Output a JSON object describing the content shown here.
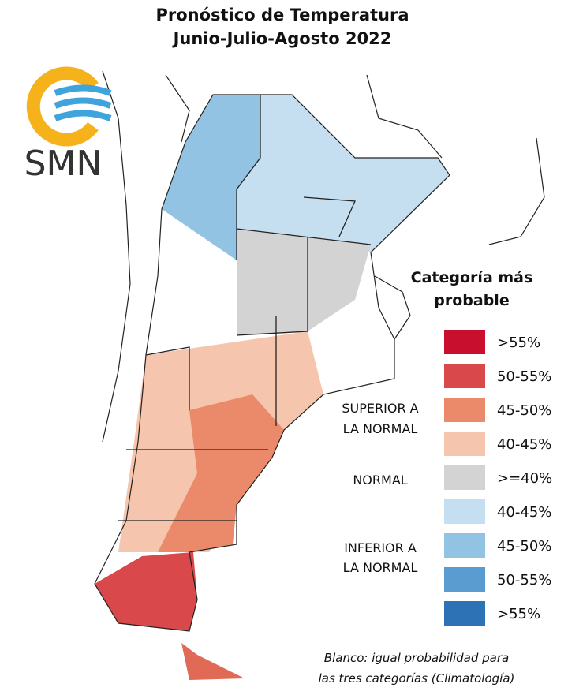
{
  "header": {
    "title_lines": [
      "Pronóstico de Temperatura",
      "Junio-Julio-Agosto 2022"
    ]
  },
  "logo": {
    "text": "SMN"
  },
  "legend": {
    "title_lines": [
      "Categoría más",
      "probable"
    ],
    "items": [
      {
        "label": ">55%",
        "color": "#c8102e"
      },
      {
        "label": "50-55%",
        "color": "#d9484a"
      },
      {
        "label": "45-50%",
        "color": "#eb8a6a"
      },
      {
        "label": "40-45%",
        "color": "#f5c6ad"
      },
      {
        "label": ">=40%",
        "color": "#d3d3d3"
      },
      {
        "label": "40-45%",
        "color": "#c6dff0"
      },
      {
        "label": "45-50%",
        "color": "#92c3e2"
      },
      {
        "label": "50-55%",
        "color": "#5a9ccf"
      },
      {
        "label": ">55%",
        "color": "#2c72b4"
      }
    ],
    "groups": [
      {
        "label_lines": [
          "SUPERIOR A",
          "LA NORMAL"
        ]
      },
      {
        "label_lines": [
          "NORMAL"
        ]
      },
      {
        "label_lines": [
          "INFERIOR A",
          "LA NORMAL"
        ]
      }
    ]
  },
  "footnote": {
    "lines": [
      "Blanco: igual probabilidad para",
      "las tres categorías (Climatología)"
    ]
  }
}
